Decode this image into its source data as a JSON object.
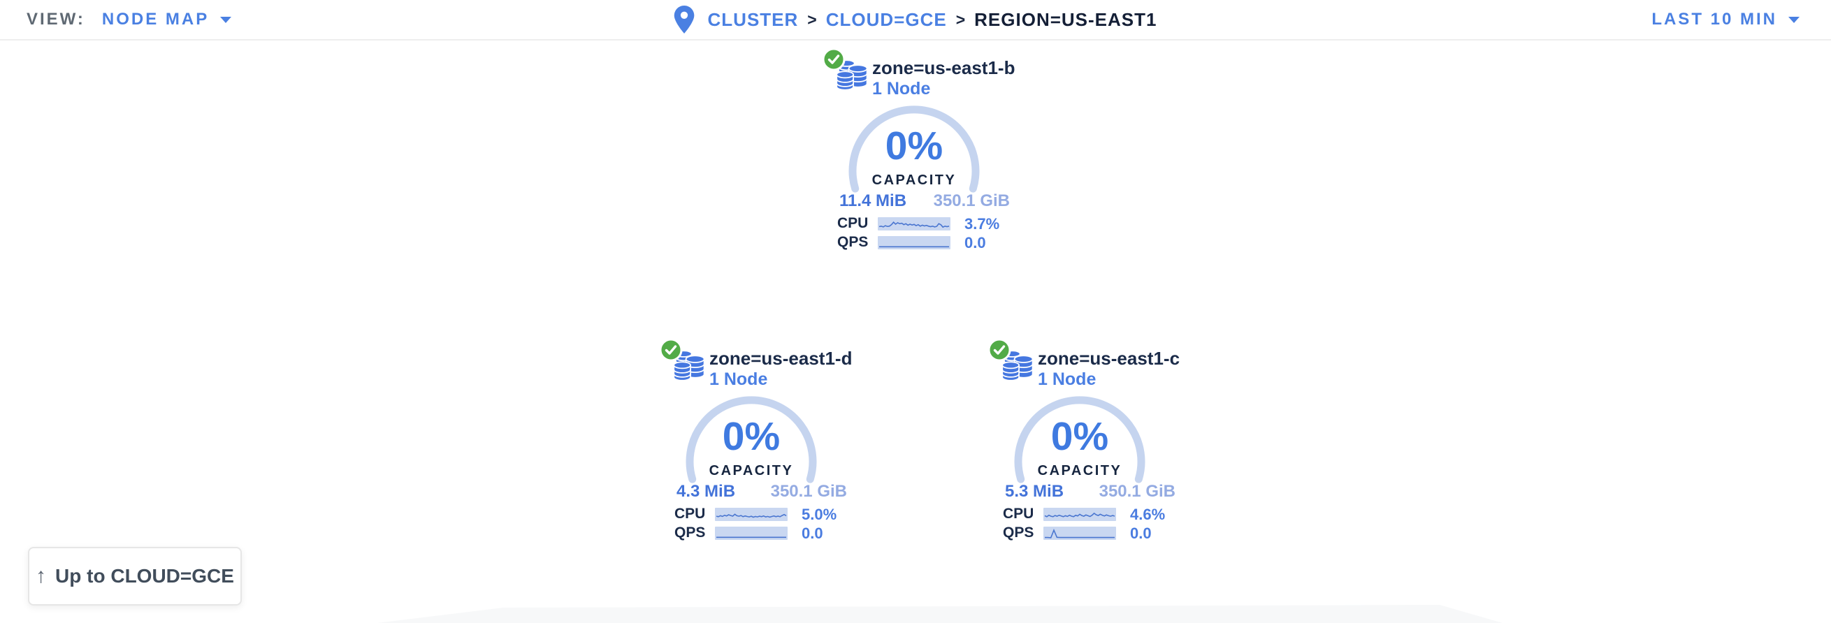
{
  "topbar": {
    "view_label": "VIEW:",
    "view_value": "NODE MAP",
    "breadcrumb": {
      "separator": ">",
      "items": [
        {
          "label": "CLUSTER"
        },
        {
          "label": "CLOUD=GCE"
        },
        {
          "label": "REGION=US-EAST1"
        }
      ]
    },
    "time_range": "LAST 10 MIN"
  },
  "zones": [
    {
      "name": "zone=us-east1-b",
      "nodes": "1 Node",
      "status_icon": "green-check",
      "capacity_pct": "0%",
      "capacity_label": "CAPACITY",
      "capacity_used": "11.4 MiB",
      "capacity_total": "350.1 GiB",
      "cpu_label": "CPU",
      "cpu_value": "3.7%",
      "qps_label": "QPS",
      "qps_value": "0.0",
      "cpu_spark": [
        0.25,
        0.3,
        0.22,
        0.35,
        0.27,
        0.3,
        0.45,
        0.7,
        0.5,
        0.65,
        0.55,
        0.6,
        0.45,
        0.55,
        0.4,
        0.5,
        0.42,
        0.48,
        0.35,
        0.45,
        0.3,
        0.4,
        0.32,
        0.38,
        0.3,
        0.25,
        0.3,
        0.22,
        0.28,
        0.55,
        0.45,
        0.2,
        0.3,
        0.25,
        0.3
      ],
      "qps_spark": [
        0.12,
        0.12
      ]
    },
    {
      "name": "zone=us-east1-d",
      "nodes": "1 Node",
      "status_icon": "green-check",
      "capacity_pct": "0%",
      "capacity_label": "CAPACITY",
      "capacity_used": "4.3 MiB",
      "capacity_total": "350.1 GiB",
      "cpu_label": "CPU",
      "cpu_value": "5.0%",
      "qps_label": "QPS",
      "qps_value": "0.0",
      "cpu_spark": [
        0.35,
        0.3,
        0.4,
        0.33,
        0.45,
        0.38,
        0.5,
        0.42,
        0.36,
        0.55,
        0.4,
        0.35,
        0.42,
        0.3,
        0.38,
        0.32,
        0.28,
        0.35,
        0.25,
        0.32,
        0.28,
        0.35,
        0.3,
        0.38,
        0.28,
        0.33,
        0.26,
        0.32,
        0.38,
        0.3,
        0.36,
        0.3,
        0.42,
        0.52,
        0.4
      ],
      "qps_spark": [
        0.12,
        0.12
      ]
    },
    {
      "name": "zone=us-east1-c",
      "nodes": "1 Node",
      "status_icon": "green-check",
      "capacity_pct": "0%",
      "capacity_label": "CAPACITY",
      "capacity_used": "5.3 MiB",
      "capacity_total": "350.1 GiB",
      "cpu_label": "CPU",
      "cpu_value": "4.6%",
      "qps_label": "QPS",
      "qps_value": "0.0",
      "cpu_spark": [
        0.4,
        0.3,
        0.45,
        0.35,
        0.3,
        0.42,
        0.35,
        0.45,
        0.38,
        0.3,
        0.4,
        0.33,
        0.45,
        0.36,
        0.3,
        0.44,
        0.38,
        0.55,
        0.42,
        0.35,
        0.48,
        0.4,
        0.32,
        0.45,
        0.65,
        0.5,
        0.42,
        0.55,
        0.45,
        0.38,
        0.48,
        0.4,
        0.35,
        0.42,
        0.36
      ],
      "qps_spark": [
        0.1,
        0.1,
        0.08,
        0.85,
        0.12,
        0.1,
        0.1,
        0.1,
        0.1,
        0.1,
        0.1,
        0.1,
        0.1,
        0.1,
        0.1,
        0.1,
        0.1,
        0.1,
        0.1,
        0.1,
        0.1,
        0.1,
        0.1,
        0.1
      ]
    }
  ],
  "up_button": {
    "arrow": "↑",
    "label": "Up to CLOUD=GCE"
  },
  "colors": {
    "accent_blue": "#4a80e2",
    "gauge_pct_blue": "#3f7ae0",
    "gauge_arc_blue": "#c5d4ef",
    "spark_bg": "#c9d7f1",
    "spark_line": "#4a76d0",
    "navy_text": "#1b2b49",
    "capacity_used_blue": "#4373d9",
    "capacity_total_blue": "#94abe2",
    "status_green": "#52ab47",
    "gray_text": "#5f6973"
  }
}
